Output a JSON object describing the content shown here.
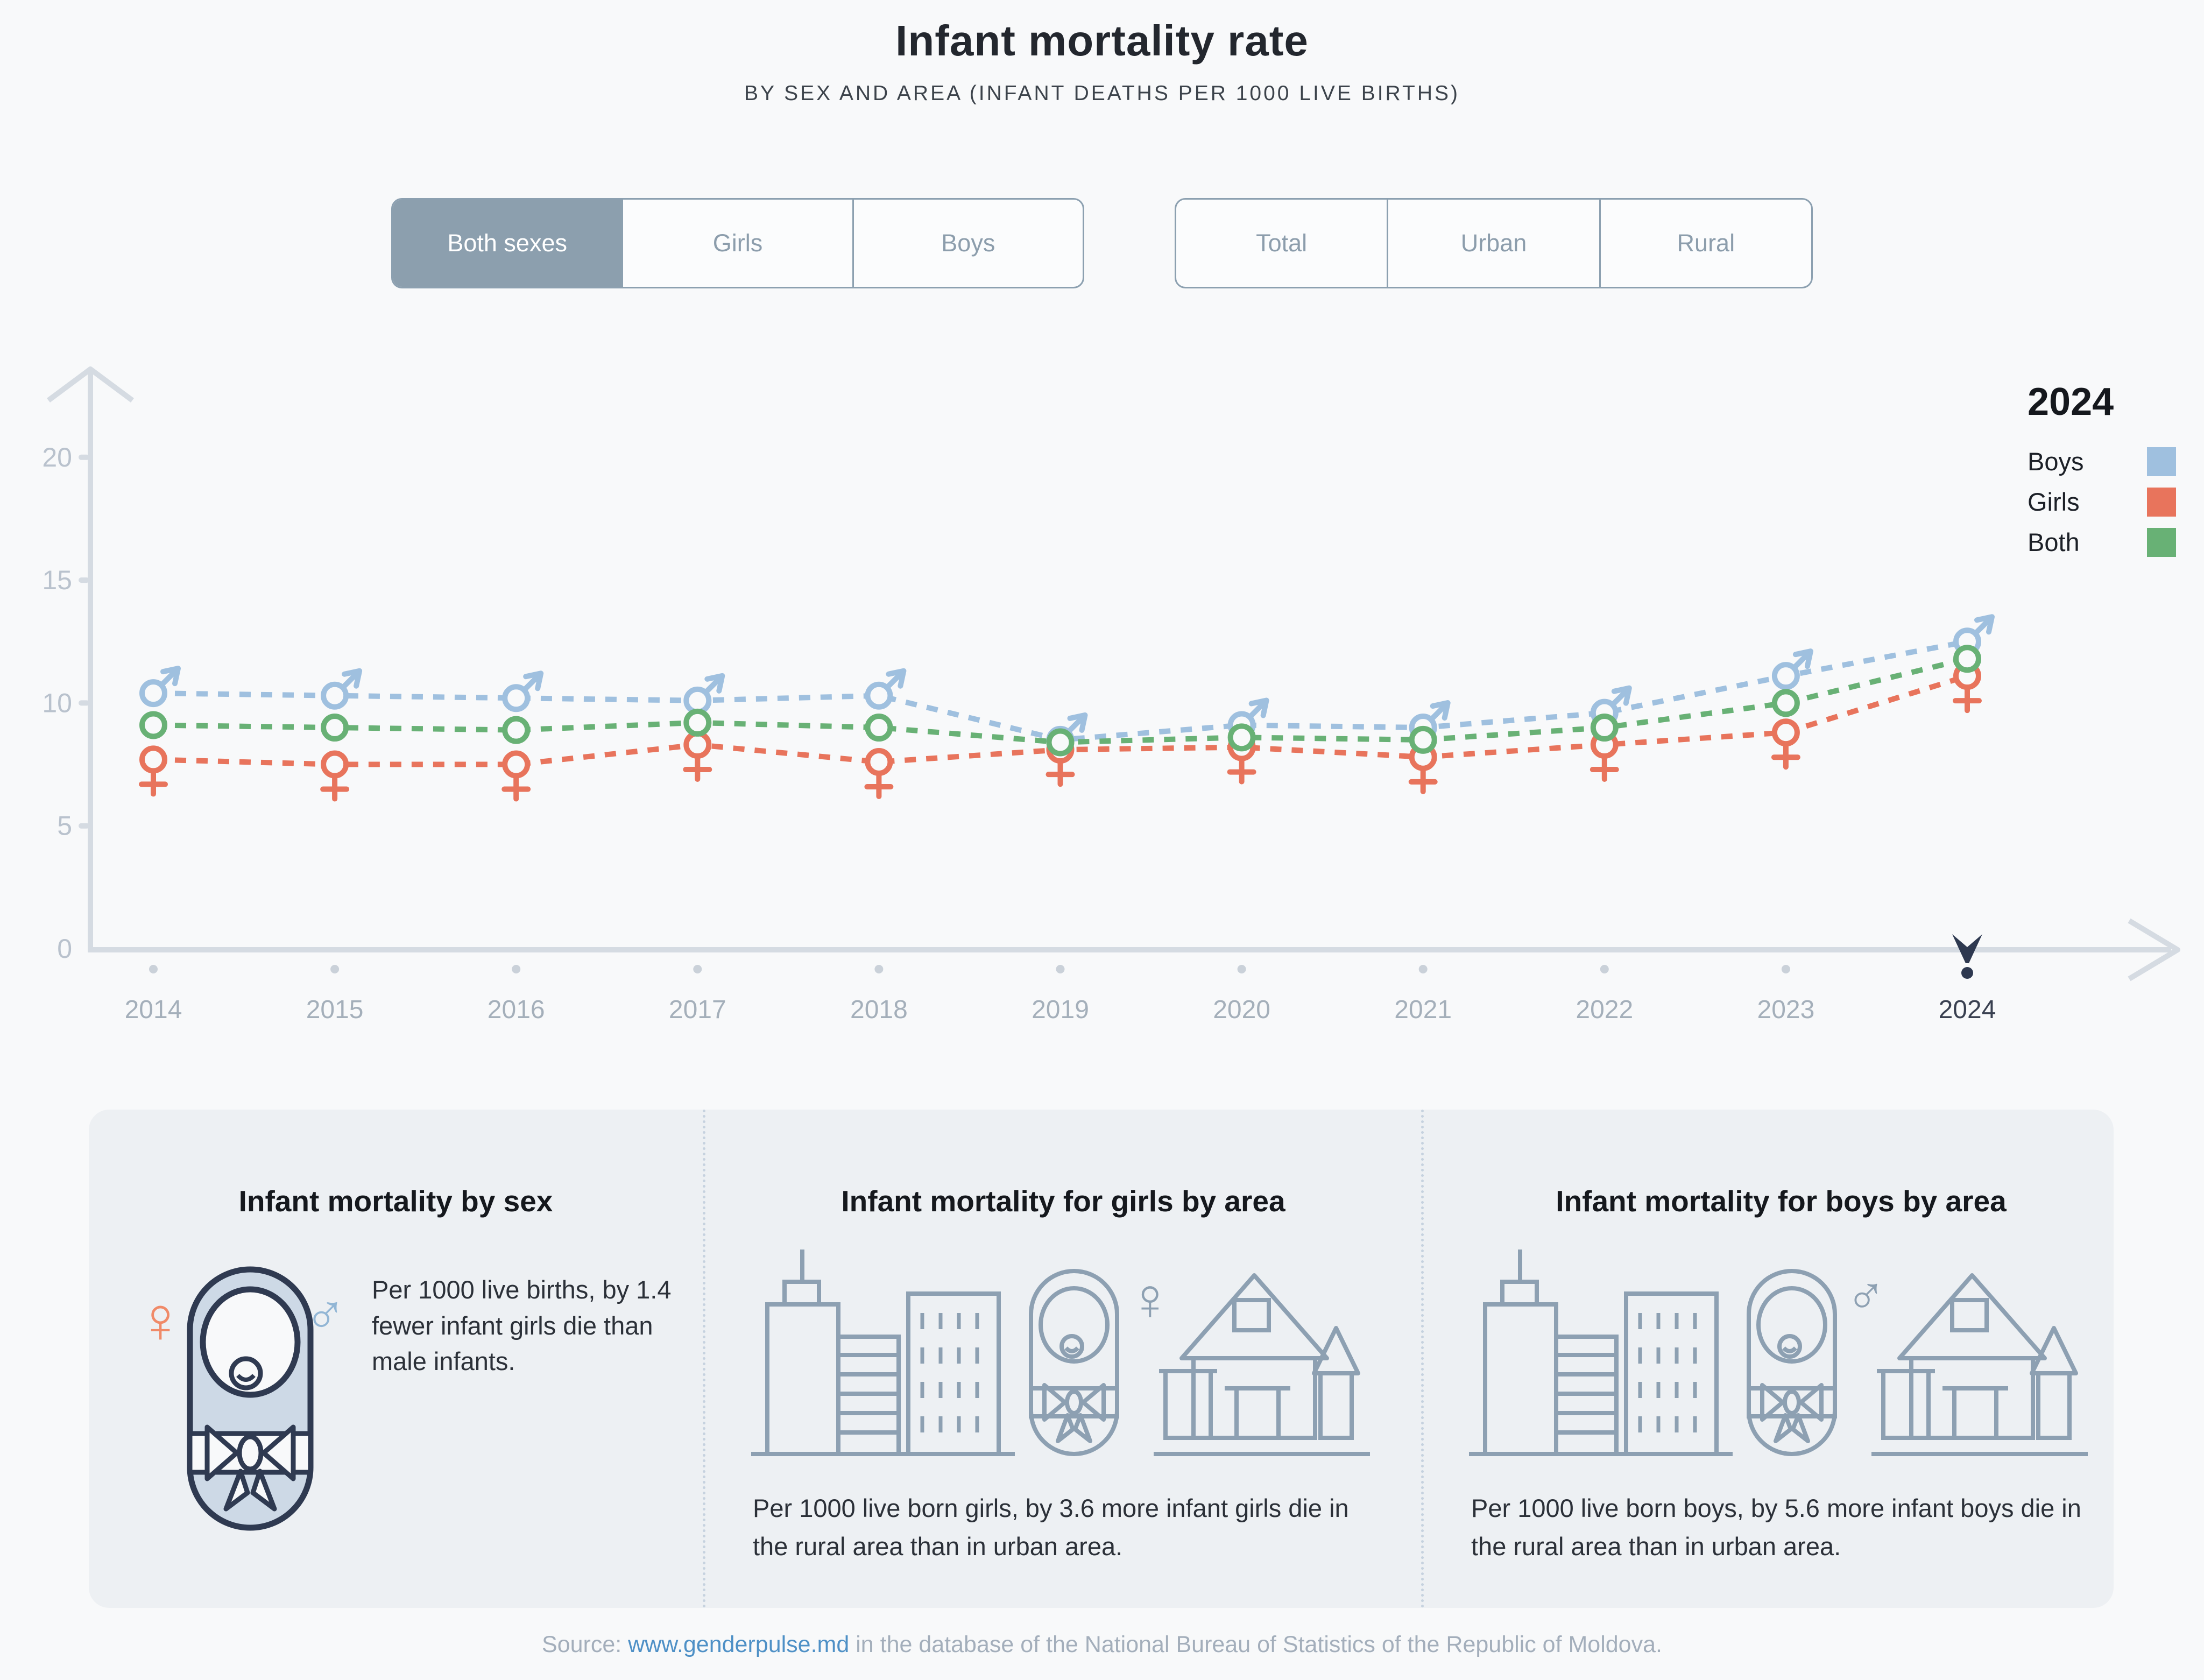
{
  "header": {
    "title": "Infant mortality rate",
    "subtitle": "BY SEX AND AREA (INFANT DEATHS PER 1000 LIVE BIRTHS)"
  },
  "toggles": {
    "sex": {
      "options": [
        "Both sexes",
        "Girls",
        "Boys"
      ],
      "active_index": 0
    },
    "area": {
      "options": [
        "Total",
        "Urban",
        "Rural"
      ],
      "active_index": -1
    }
  },
  "chart_data": {
    "type": "line",
    "x": [
      2014,
      2015,
      2016,
      2017,
      2018,
      2019,
      2020,
      2021,
      2022,
      2023,
      2024
    ],
    "series": [
      {
        "name": "Boys",
        "color": "#9fc0df",
        "marker": "male",
        "values": [
          10.4,
          10.3,
          10.2,
          10.1,
          10.3,
          8.5,
          9.1,
          9.0,
          9.6,
          11.1,
          12.5
        ]
      },
      {
        "name": "Girls",
        "color": "#e8745c",
        "marker": "female",
        "values": [
          7.7,
          7.5,
          7.5,
          8.3,
          7.6,
          8.1,
          8.2,
          7.8,
          8.3,
          8.8,
          11.1
        ]
      },
      {
        "name": "Both",
        "color": "#68b175",
        "marker": "circle",
        "values": [
          9.1,
          9.0,
          8.9,
          9.2,
          9.0,
          8.4,
          8.6,
          8.5,
          9.0,
          10.0,
          11.8
        ]
      }
    ],
    "ylim": [
      0,
      20
    ],
    "yticks": [
      0,
      5,
      10,
      15,
      20
    ],
    "grid": false,
    "line_style": "dashed",
    "highlight_year": 2024,
    "legend": {
      "position": "right",
      "title": "2024",
      "entries": [
        {
          "label": "Boys",
          "color": "#9fc0df"
        },
        {
          "label": "Girls",
          "color": "#e8745c"
        },
        {
          "label": "Both",
          "color": "#68b175"
        }
      ]
    }
  },
  "cards": [
    {
      "title": "Infant mortality by sex",
      "text": "Per 1000 live births, by 1.4 fewer infant girls die than male infants."
    },
    {
      "title": "Infant mortality for girls by area",
      "text": "Per 1000 live born girls, by 3.6 more infant girls die in the rural area than in urban area."
    },
    {
      "title": "Infant mortality for boys by area",
      "text": "Per 1000 live born boys, by 5.6 more infant boys die in the rural area than in urban area."
    }
  ],
  "source": {
    "prefix": "Source: ",
    "link": "www.genderpulse.md",
    "suffix": " in the database of the National Bureau of Statistics of the Republic of Moldova."
  },
  "colors": {
    "axis": "#d5dbe2",
    "tick_label": "#b9c2cd",
    "year_label": "#a4afba",
    "highlight": "#2e3950",
    "background": "#f8f9fa"
  }
}
